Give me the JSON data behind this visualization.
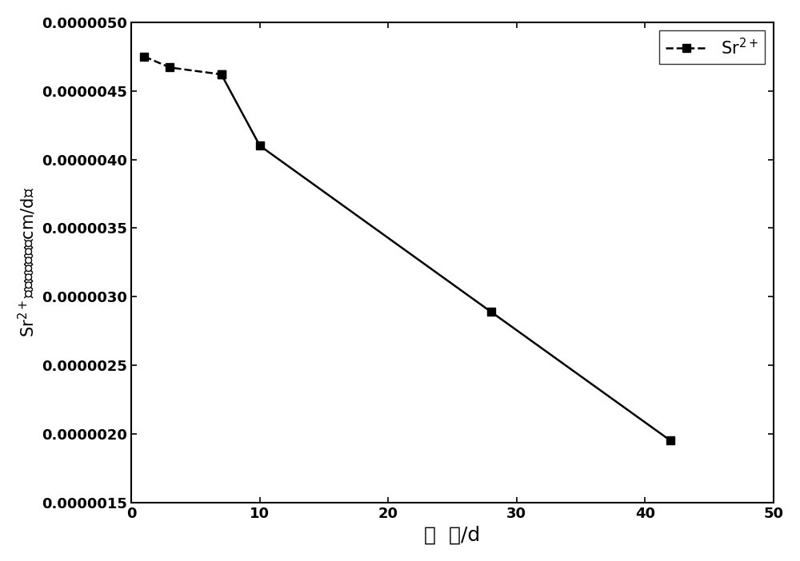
{
  "x": [
    1,
    3,
    7,
    10,
    28,
    42
  ],
  "y": [
    4.75e-06,
    4.67e-06,
    4.62e-06,
    4.1e-06,
    2.89e-06,
    1.95e-06
  ],
  "line_color": "#000000",
  "marker": "s",
  "marker_size": 7,
  "line_width": 1.8,
  "xlabel": "时  间/d",
  "xlim": [
    0,
    50
  ],
  "ylim": [
    1.5e-06,
    5e-06
  ],
  "ytick_values": [
    1.5e-06,
    2e-06,
    2.5e-06,
    3e-06,
    3.5e-06,
    4e-06,
    4.5e-06,
    5e-06
  ],
  "ytick_labels": [
    "0.0000015",
    "0.0000020",
    "0.0000025",
    "0.0000030",
    "0.0000035",
    "0.0000040",
    "0.0000045",
    "0.0000050"
  ],
  "xticks": [
    0,
    10,
    20,
    30,
    40,
    50
  ],
  "background_color": "#ffffff",
  "xlabel_fontsize": 18,
  "ylabel_fontsize": 15,
  "tick_fontsize": 13,
  "legend_fontsize": 15,
  "figsize": [
    10.0,
    7.02
  ],
  "dpi": 100
}
